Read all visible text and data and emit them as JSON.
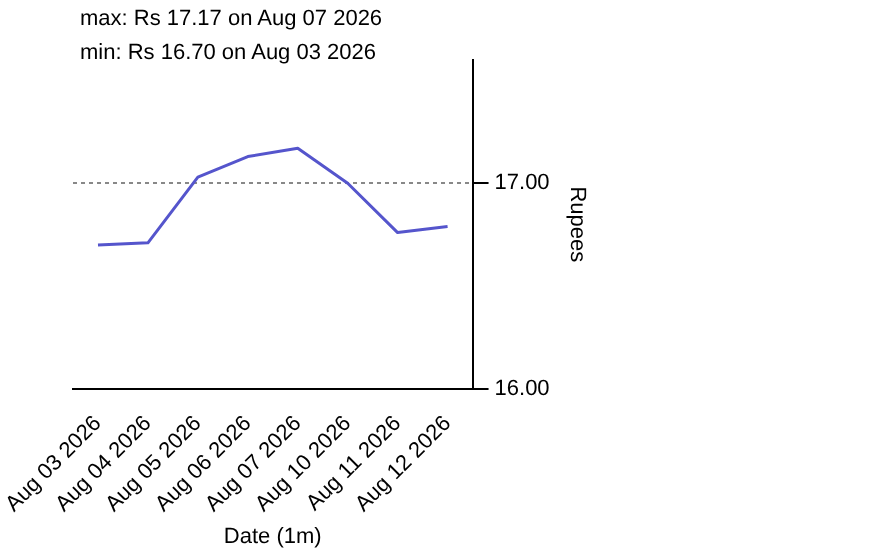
{
  "chart_data": {
    "type": "line",
    "xlabel": "Date (1m)",
    "ylabel": "Rupees",
    "annotations": [
      "max: Rs 17.17 on Aug 07 2026",
      "min: Rs 16.70 on Aug 03 2026"
    ],
    "categories": [
      "Aug 03 2026",
      "Aug 04 2026",
      "Aug 05 2026",
      "Aug 06 2026",
      "Aug 07 2026",
      "Aug 10 2026",
      "Aug 11 2026",
      "Aug 12 2026"
    ],
    "series": [
      {
        "color": "#5555cc",
        "values": [
          16.7,
          16.71,
          17.03,
          17.13,
          17.17,
          17.0,
          16.76,
          16.79
        ]
      }
    ],
    "ylim": [
      16.0,
      17.6
    ],
    "yticks": [
      {
        "value": 16,
        "label": "16.00"
      },
      {
        "value": 17,
        "label": "17.00"
      }
    ],
    "grid": "y",
    "marker": "none",
    "line_style": "solid"
  }
}
